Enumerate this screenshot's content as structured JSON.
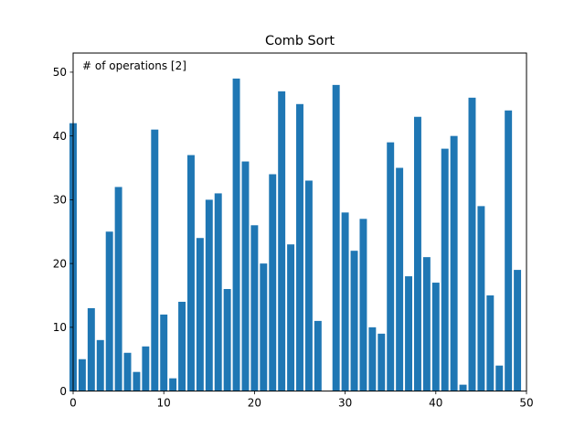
{
  "chart_data": {
    "type": "bar",
    "title": "Comb Sort",
    "annotation": "# of operations [2]",
    "xlabel": "",
    "ylabel": "",
    "x": [
      0,
      1,
      2,
      3,
      4,
      5,
      6,
      7,
      8,
      9,
      10,
      11,
      12,
      13,
      14,
      15,
      16,
      17,
      18,
      19,
      20,
      21,
      22,
      23,
      24,
      25,
      26,
      27,
      28,
      29,
      30,
      31,
      32,
      33,
      34,
      35,
      36,
      37,
      38,
      39,
      40,
      41,
      42,
      43,
      44,
      45,
      46,
      47,
      48,
      49
    ],
    "values": [
      42,
      5,
      13,
      8,
      25,
      32,
      6,
      3,
      7,
      41,
      12,
      2,
      14,
      37,
      24,
      30,
      31,
      16,
      49,
      36,
      26,
      20,
      34,
      47,
      23,
      45,
      33,
      11,
      0,
      48,
      28,
      22,
      27,
      10,
      9,
      39,
      35,
      18,
      43,
      21,
      17,
      38,
      40,
      1,
      46,
      29,
      15,
      4,
      44,
      19
    ],
    "xlim": [
      0,
      50
    ],
    "ylim": [
      0,
      53
    ],
    "xticks": [
      0,
      10,
      20,
      30,
      40,
      50
    ],
    "yticks": [
      0,
      10,
      20,
      30,
      40,
      50
    ],
    "grid": false,
    "bar_color": "#1f77b4"
  }
}
